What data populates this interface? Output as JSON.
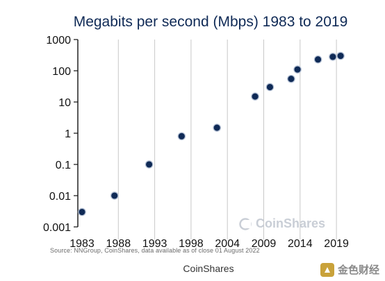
{
  "chart_data": {
    "type": "scatter",
    "title": "Megabits per second (Mbps) 1983 to 2019",
    "xlabel": "",
    "ylabel": "",
    "y_scale": "log",
    "ylim": [
      0.001,
      1000
    ],
    "y_ticks": [
      "1000",
      "100",
      "10",
      "1",
      "0.1",
      "0.01",
      "0.001"
    ],
    "x_ticks": [
      "1983",
      "1988",
      "1993",
      "1998",
      "2004",
      "2009",
      "2014",
      "2019"
    ],
    "grid": "vertical",
    "points": [
      {
        "x": 1983,
        "y": 0.003
      },
      {
        "x": 1987.6,
        "y": 0.01
      },
      {
        "x": 1992.5,
        "y": 0.1
      },
      {
        "x": 1997.1,
        "y": 0.8
      },
      {
        "x": 2002.1,
        "y": 1.5
      },
      {
        "x": 2007.5,
        "y": 15
      },
      {
        "x": 2009.6,
        "y": 30
      },
      {
        "x": 2012.6,
        "y": 55
      },
      {
        "x": 2013.5,
        "y": 110
      },
      {
        "x": 2016.4,
        "y": 230
      },
      {
        "x": 2018.5,
        "y": 280
      },
      {
        "x": 2019.6,
        "y": 300
      }
    ],
    "colors": {
      "marker_fill": "#0f2a56",
      "marker_edge": "#b7c3d6",
      "grid": "#c8c8c8",
      "axis": "#111111"
    }
  },
  "source": "Source: NNGroup, CoinShares, data available as of close 01 August 2022",
  "footer": "CoinShares",
  "watermark": "CoinShares",
  "corner_logo": "金色财经"
}
